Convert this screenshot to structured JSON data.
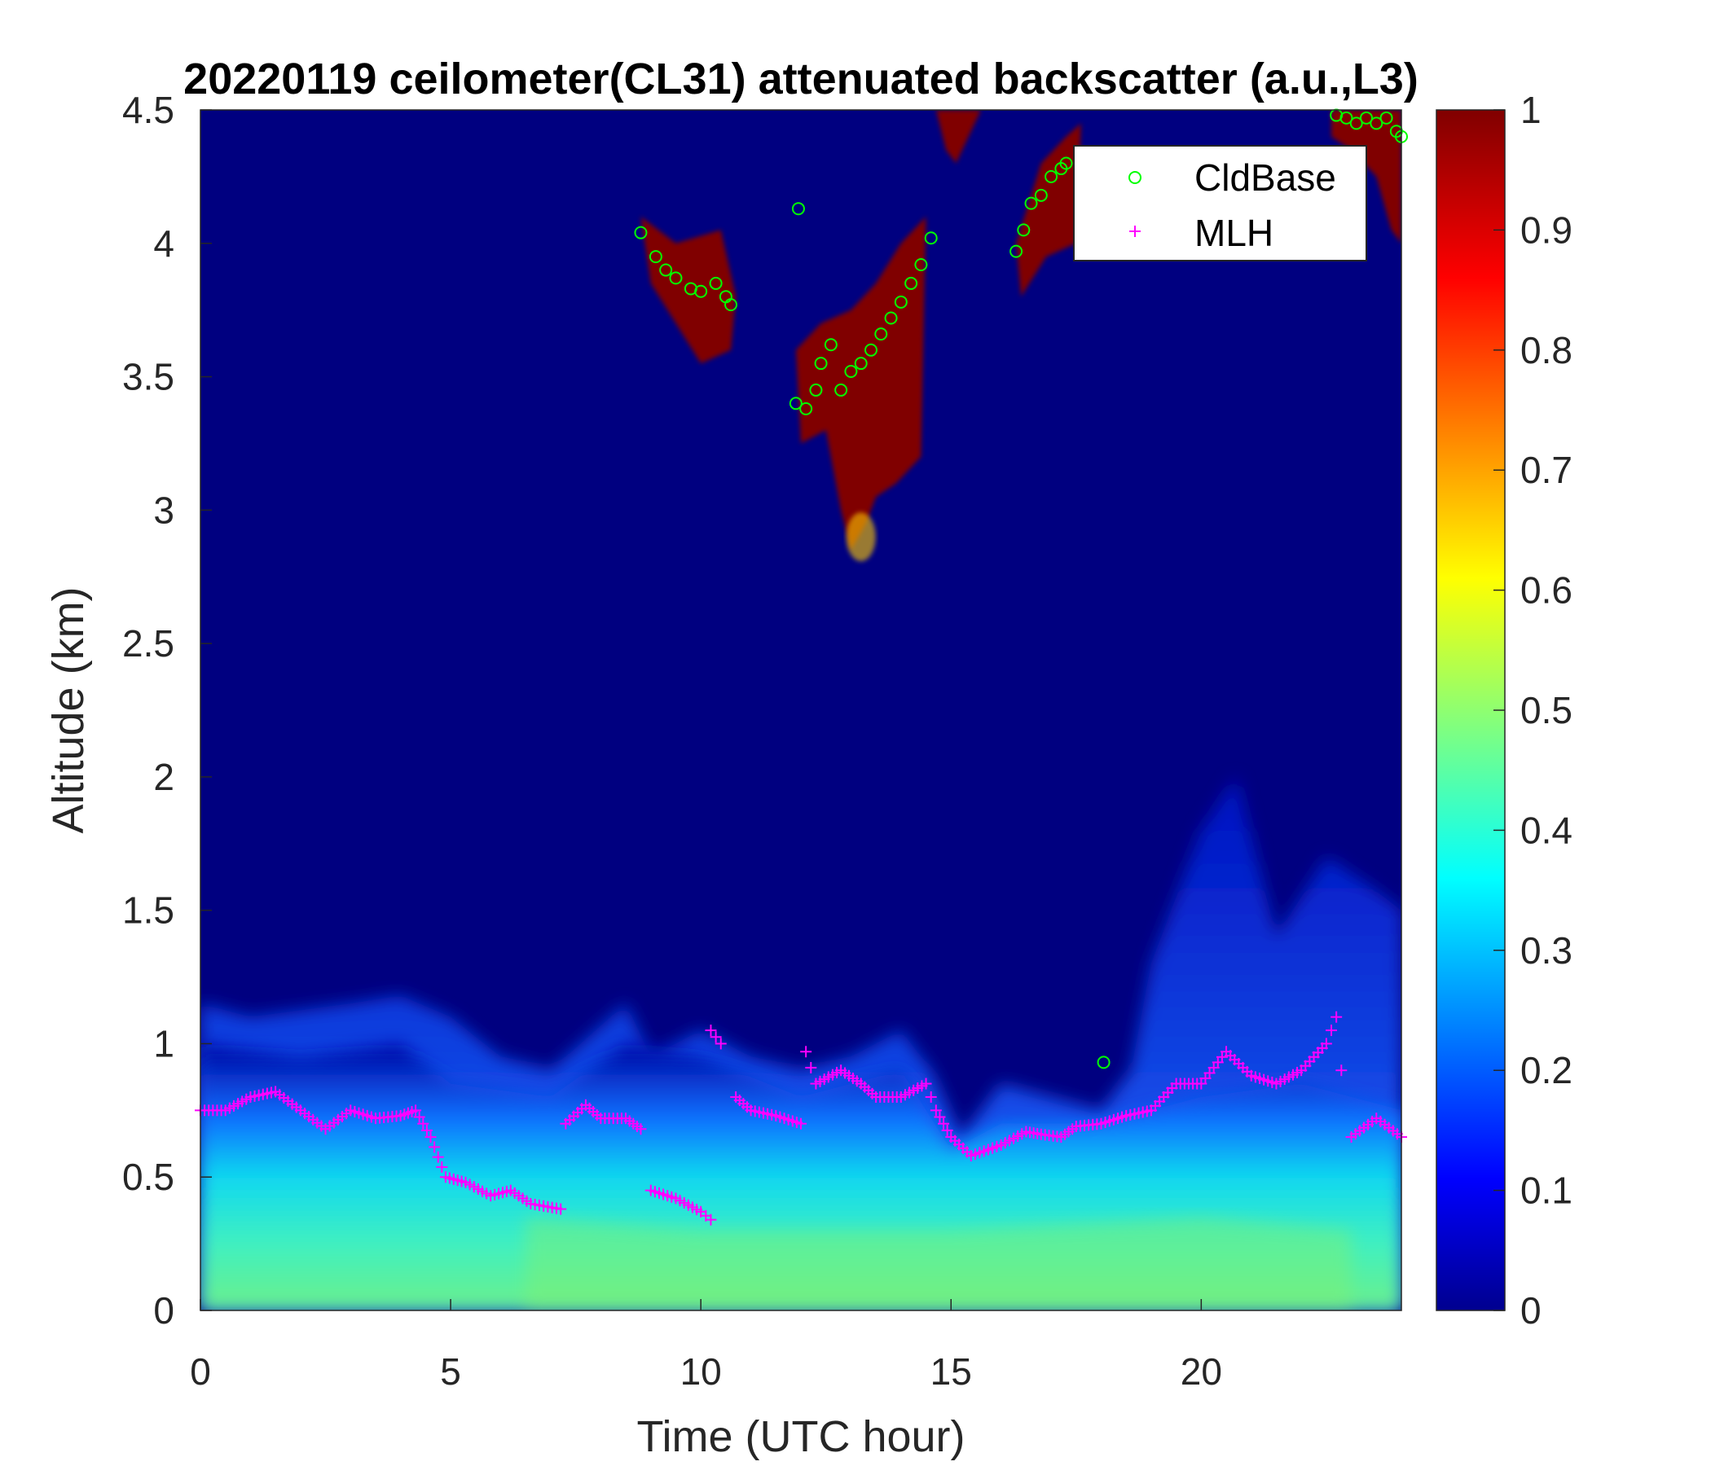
{
  "chart_data": {
    "type": "heatmap",
    "title": "20220119 ceilometer(CL31) attenuated backscatter (a.u.,L3)",
    "xlabel": "Time (UTC hour)",
    "ylabel": "Altitude (km)",
    "xlim": [
      0,
      24
    ],
    "ylim": [
      0,
      4.5
    ],
    "xticks": [
      0,
      5,
      10,
      15,
      20
    ],
    "yticks": [
      0,
      0.5,
      1,
      1.5,
      2,
      2.5,
      3,
      3.5,
      4,
      4.5
    ],
    "yticklabels": [
      "0",
      "0.5",
      "1",
      "1.5",
      "2",
      "2.5",
      "3",
      "3.5",
      "4",
      "4.5"
    ],
    "colorbar": {
      "range": [
        0,
        1
      ],
      "ticks": [
        0,
        0.1,
        0.2,
        0.3,
        0.4,
        0.5,
        0.6,
        0.7,
        0.8,
        0.9,
        1
      ],
      "ticklabels": [
        "0",
        "0.1",
        "0.2",
        "0.3",
        "0.4",
        "0.5",
        "0.6",
        "0.7",
        "0.8",
        "0.9",
        "1"
      ],
      "colormap": "jet"
    },
    "legend": {
      "placement": "top-right",
      "entries": [
        {
          "label": "CldBase",
          "marker": "circle",
          "color": "#00ff00"
        },
        {
          "label": "MLH",
          "marker": "plus",
          "color": "#ff00ff"
        }
      ]
    },
    "series": [
      {
        "name": "CldBase",
        "segments": [
          [
            [
              8.8,
              4.04
            ],
            [
              9.1,
              3.95
            ],
            [
              9.3,
              3.9
            ],
            [
              9.5,
              3.87
            ],
            [
              9.8,
              3.83
            ],
            [
              10,
              3.82
            ],
            [
              10.3,
              3.85
            ],
            [
              10.5,
              3.8
            ],
            [
              10.6,
              3.77
            ]
          ],
          [
            [
              11.95,
              4.13
            ]
          ],
          [
            [
              11.9,
              3.4
            ],
            [
              12.1,
              3.38
            ],
            [
              12.3,
              3.45
            ],
            [
              12.4,
              3.55
            ],
            [
              12.6,
              3.62
            ],
            [
              12.8,
              3.45
            ],
            [
              13,
              3.52
            ],
            [
              13.2,
              3.55
            ],
            [
              13.4,
              3.6
            ],
            [
              13.6,
              3.66
            ],
            [
              13.8,
              3.72
            ],
            [
              14,
              3.78
            ],
            [
              14.2,
              3.85
            ],
            [
              14.4,
              3.92
            ],
            [
              14.6,
              4.02
            ]
          ],
          [
            [
              16.3,
              3.97
            ],
            [
              16.45,
              4.05
            ],
            [
              16.6,
              4.15
            ],
            [
              16.8,
              4.18
            ],
            [
              17,
              4.25
            ],
            [
              17.2,
              4.28
            ],
            [
              17.3,
              4.3
            ]
          ],
          [
            [
              18.05,
              0.93
            ]
          ],
          [
            [
              22.7,
              4.48
            ],
            [
              22.9,
              4.47
            ],
            [
              23.1,
              4.45
            ],
            [
              23.3,
              4.47
            ],
            [
              23.5,
              4.45
            ],
            [
              23.7,
              4.47
            ],
            [
              23.9,
              4.42
            ],
            [
              24,
              4.4
            ]
          ]
        ]
      },
      {
        "name": "MLH",
        "segments": [
          [
            [
              0,
              0.75
            ],
            [
              0.5,
              0.75
            ],
            [
              1,
              0.8
            ],
            [
              1.5,
              0.82
            ],
            [
              2,
              0.75
            ],
            [
              2.5,
              0.68
            ],
            [
              3,
              0.75
            ],
            [
              3.5,
              0.72
            ],
            [
              4,
              0.73
            ],
            [
              4.3,
              0.75
            ],
            [
              4.6,
              0.65
            ],
            [
              4.9,
              0.5
            ],
            [
              5.3,
              0.48
            ],
            [
              5.8,
              0.43
            ],
            [
              6.2,
              0.45
            ],
            [
              6.6,
              0.4
            ],
            [
              7.2,
              0.38
            ]
          ],
          [
            [
              7.3,
              0.7
            ],
            [
              7.7,
              0.77
            ],
            [
              8,
              0.72
            ],
            [
              8.5,
              0.72
            ],
            [
              8.8,
              0.68
            ]
          ],
          [
            [
              9,
              0.45
            ],
            [
              9.5,
              0.42
            ],
            [
              10,
              0.37
            ],
            [
              10.2,
              0.34
            ]
          ],
          [
            [
              10.2,
              1.05
            ],
            [
              10.4,
              1.0
            ]
          ],
          [
            [
              10.7,
              0.8
            ],
            [
              11,
              0.75
            ],
            [
              11.5,
              0.73
            ],
            [
              12,
              0.7
            ]
          ],
          [
            [
              12.1,
              0.97
            ],
            [
              12.3,
              0.85
            ],
            [
              12.8,
              0.9
            ],
            [
              13.2,
              0.85
            ],
            [
              13.5,
              0.8
            ],
            [
              14,
              0.8
            ],
            [
              14.5,
              0.85
            ],
            [
              14.7,
              0.75
            ],
            [
              15,
              0.65
            ],
            [
              15.4,
              0.58
            ],
            [
              16,
              0.62
            ],
            [
              16.5,
              0.67
            ],
            [
              16.8,
              0.66
            ],
            [
              17.2,
              0.65
            ],
            [
              17.5,
              0.69
            ],
            [
              18,
              0.7
            ],
            [
              18.5,
              0.73
            ],
            [
              19,
              0.75
            ],
            [
              19.5,
              0.85
            ],
            [
              20,
              0.85
            ],
            [
              20.5,
              0.97
            ],
            [
              21,
              0.88
            ],
            [
              21.5,
              0.85
            ],
            [
              22,
              0.9
            ],
            [
              22.5,
              1.0
            ],
            [
              22.7,
              1.1
            ],
            [
              22.8,
              0.9
            ]
          ],
          [
            [
              23,
              0.65
            ],
            [
              23.5,
              0.72
            ],
            [
              24,
              0.65
            ]
          ]
        ]
      }
    ]
  }
}
